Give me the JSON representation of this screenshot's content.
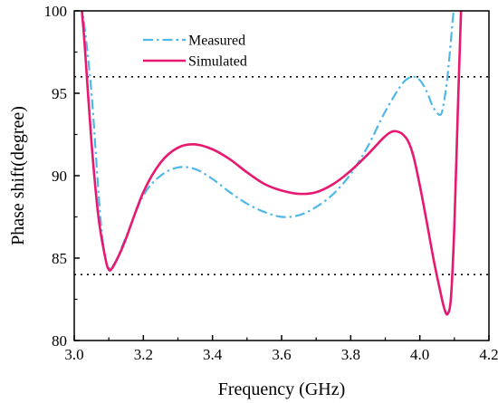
{
  "chart_data": {
    "type": "line",
    "xlabel": "Frequency (GHz)",
    "ylabel": "Phase shift(degree)",
    "xlim": [
      3.0,
      4.2
    ],
    "ylim": [
      80,
      100
    ],
    "xticks": [
      3.0,
      3.2,
      3.4,
      3.6,
      3.8,
      4.0,
      4.2
    ],
    "yticks": [
      80,
      85,
      90,
      95,
      100
    ],
    "reference_lines": [
      96,
      84
    ],
    "legend_position": "top-left",
    "series": [
      {
        "name": "Measured",
        "style": "dash-dot",
        "color": "#4FB8E8",
        "x": [
          3.02,
          3.03,
          3.05,
          3.07,
          3.08,
          3.09,
          3.1,
          3.12,
          3.15,
          3.2,
          3.25,
          3.3,
          3.35,
          3.4,
          3.45,
          3.5,
          3.55,
          3.6,
          3.65,
          3.7,
          3.75,
          3.8,
          3.85,
          3.9,
          3.95,
          3.98,
          4.0,
          4.02,
          4.04,
          4.06,
          4.07,
          4.08,
          4.09,
          4.095,
          4.1
        ],
        "y": [
          100.5,
          99.0,
          95.0,
          89.0,
          86.5,
          85.0,
          84.4,
          84.8,
          86.3,
          88.8,
          90.0,
          90.5,
          90.4,
          89.8,
          89.0,
          88.3,
          87.8,
          87.5,
          87.6,
          88.1,
          88.9,
          90.1,
          91.8,
          93.9,
          95.6,
          96.0,
          95.8,
          95.1,
          94.1,
          93.7,
          94.5,
          96.0,
          98.2,
          99.4,
          100.5
        ]
      },
      {
        "name": "Simulated",
        "style": "solid",
        "color": "#E8176F",
        "x": [
          3.02,
          3.03,
          3.05,
          3.07,
          3.09,
          3.1,
          3.11,
          3.13,
          3.15,
          3.2,
          3.25,
          3.3,
          3.35,
          3.4,
          3.45,
          3.5,
          3.55,
          3.6,
          3.65,
          3.7,
          3.75,
          3.8,
          3.85,
          3.9,
          3.93,
          3.96,
          3.98,
          4.0,
          4.02,
          4.04,
          4.06,
          4.07,
          4.08,
          4.09,
          4.1,
          4.11,
          4.12
        ],
        "y": [
          100.5,
          98.0,
          92.0,
          87.5,
          85.0,
          84.3,
          84.4,
          85.2,
          86.2,
          89.0,
          90.8,
          91.7,
          91.9,
          91.6,
          91.0,
          90.2,
          89.5,
          89.1,
          88.9,
          89.0,
          89.5,
          90.3,
          91.3,
          92.4,
          92.7,
          92.3,
          91.3,
          89.4,
          87.2,
          84.9,
          82.9,
          82.0,
          81.6,
          82.6,
          87.0,
          94.0,
          100.5
        ]
      }
    ]
  }
}
